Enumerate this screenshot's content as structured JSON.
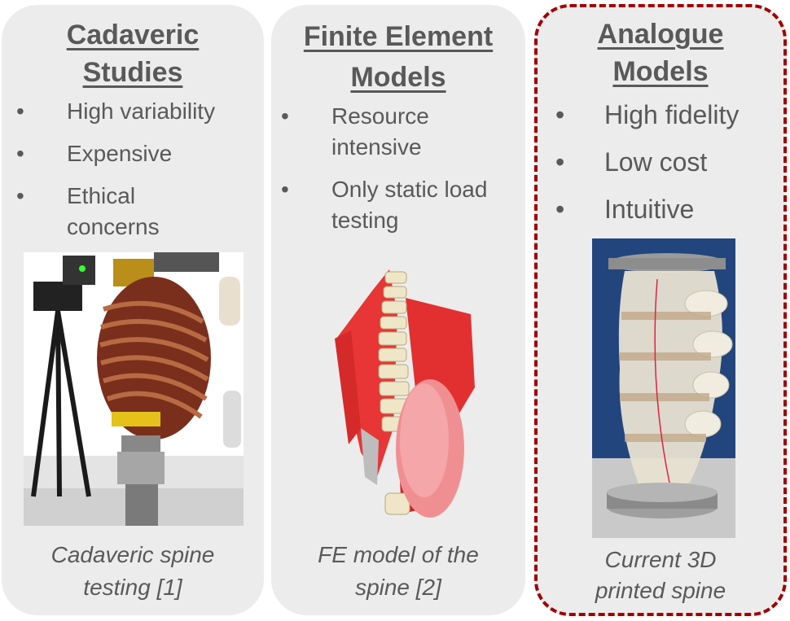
{
  "panels": [
    {
      "title_lines": [
        "Cadaveric",
        "Studies"
      ],
      "bullets": [
        "High variability",
        "Expensive",
        "Ethical concerns"
      ],
      "image_icon": "cadaveric-spine-photo",
      "caption_lines": [
        "Cadaveric spine",
        "testing [1]"
      ]
    },
    {
      "title_lines": [
        "Finite Element",
        "Models"
      ],
      "bullets": [
        "Resource intensive",
        "Only static load testing"
      ],
      "image_icon": "fe-model-render",
      "caption_lines": [
        "FE model of the",
        "spine [2]"
      ]
    },
    {
      "title_lines": [
        "Analogue",
        "Models"
      ],
      "bullets": [
        "High fidelity",
        "Low cost",
        "Intuitive"
      ],
      "image_icon": "printed-spine-photo",
      "caption_lines": [
        "Current 3D",
        "printed spine"
      ]
    }
  ],
  "bullet_char": "•",
  "colors": {
    "text": "#595959",
    "panel": "#ececec",
    "highlight_border": "#a00000"
  }
}
